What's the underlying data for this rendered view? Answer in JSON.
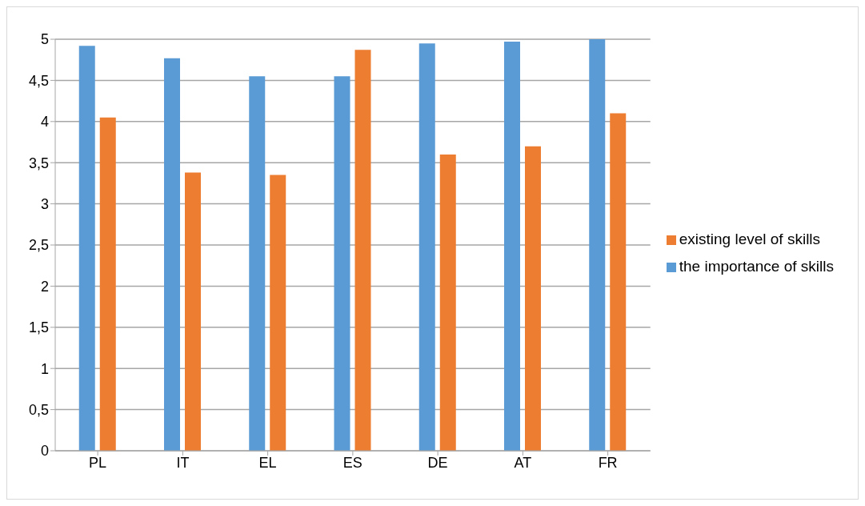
{
  "chart_data": {
    "type": "bar",
    "categories": [
      "PL",
      "IT",
      "EL",
      "ES",
      "DE",
      "AT",
      "FR"
    ],
    "series": [
      {
        "name": "the importance of skills",
        "color": "#5b9bd5",
        "values": [
          4.92,
          4.77,
          4.55,
          4.55,
          4.95,
          4.97,
          5.0
        ]
      },
      {
        "name": "existing level of skills",
        "color": "#ed7d31",
        "values": [
          4.05,
          3.38,
          3.35,
          4.87,
          3.6,
          3.7,
          4.1
        ]
      }
    ],
    "ylim": [
      0,
      5
    ],
    "yticks": [
      0,
      {
        "value": 0.5,
        "label": "0,5"
      },
      1,
      {
        "value": 1.5,
        "label": "1,5"
      },
      2,
      {
        "value": 2.5,
        "label": "2,5"
      },
      3,
      {
        "value": 3.5,
        "label": "3,5"
      },
      4,
      {
        "value": 4.5,
        "label": "4,5"
      },
      5
    ],
    "grid": "y",
    "legend": "right"
  }
}
